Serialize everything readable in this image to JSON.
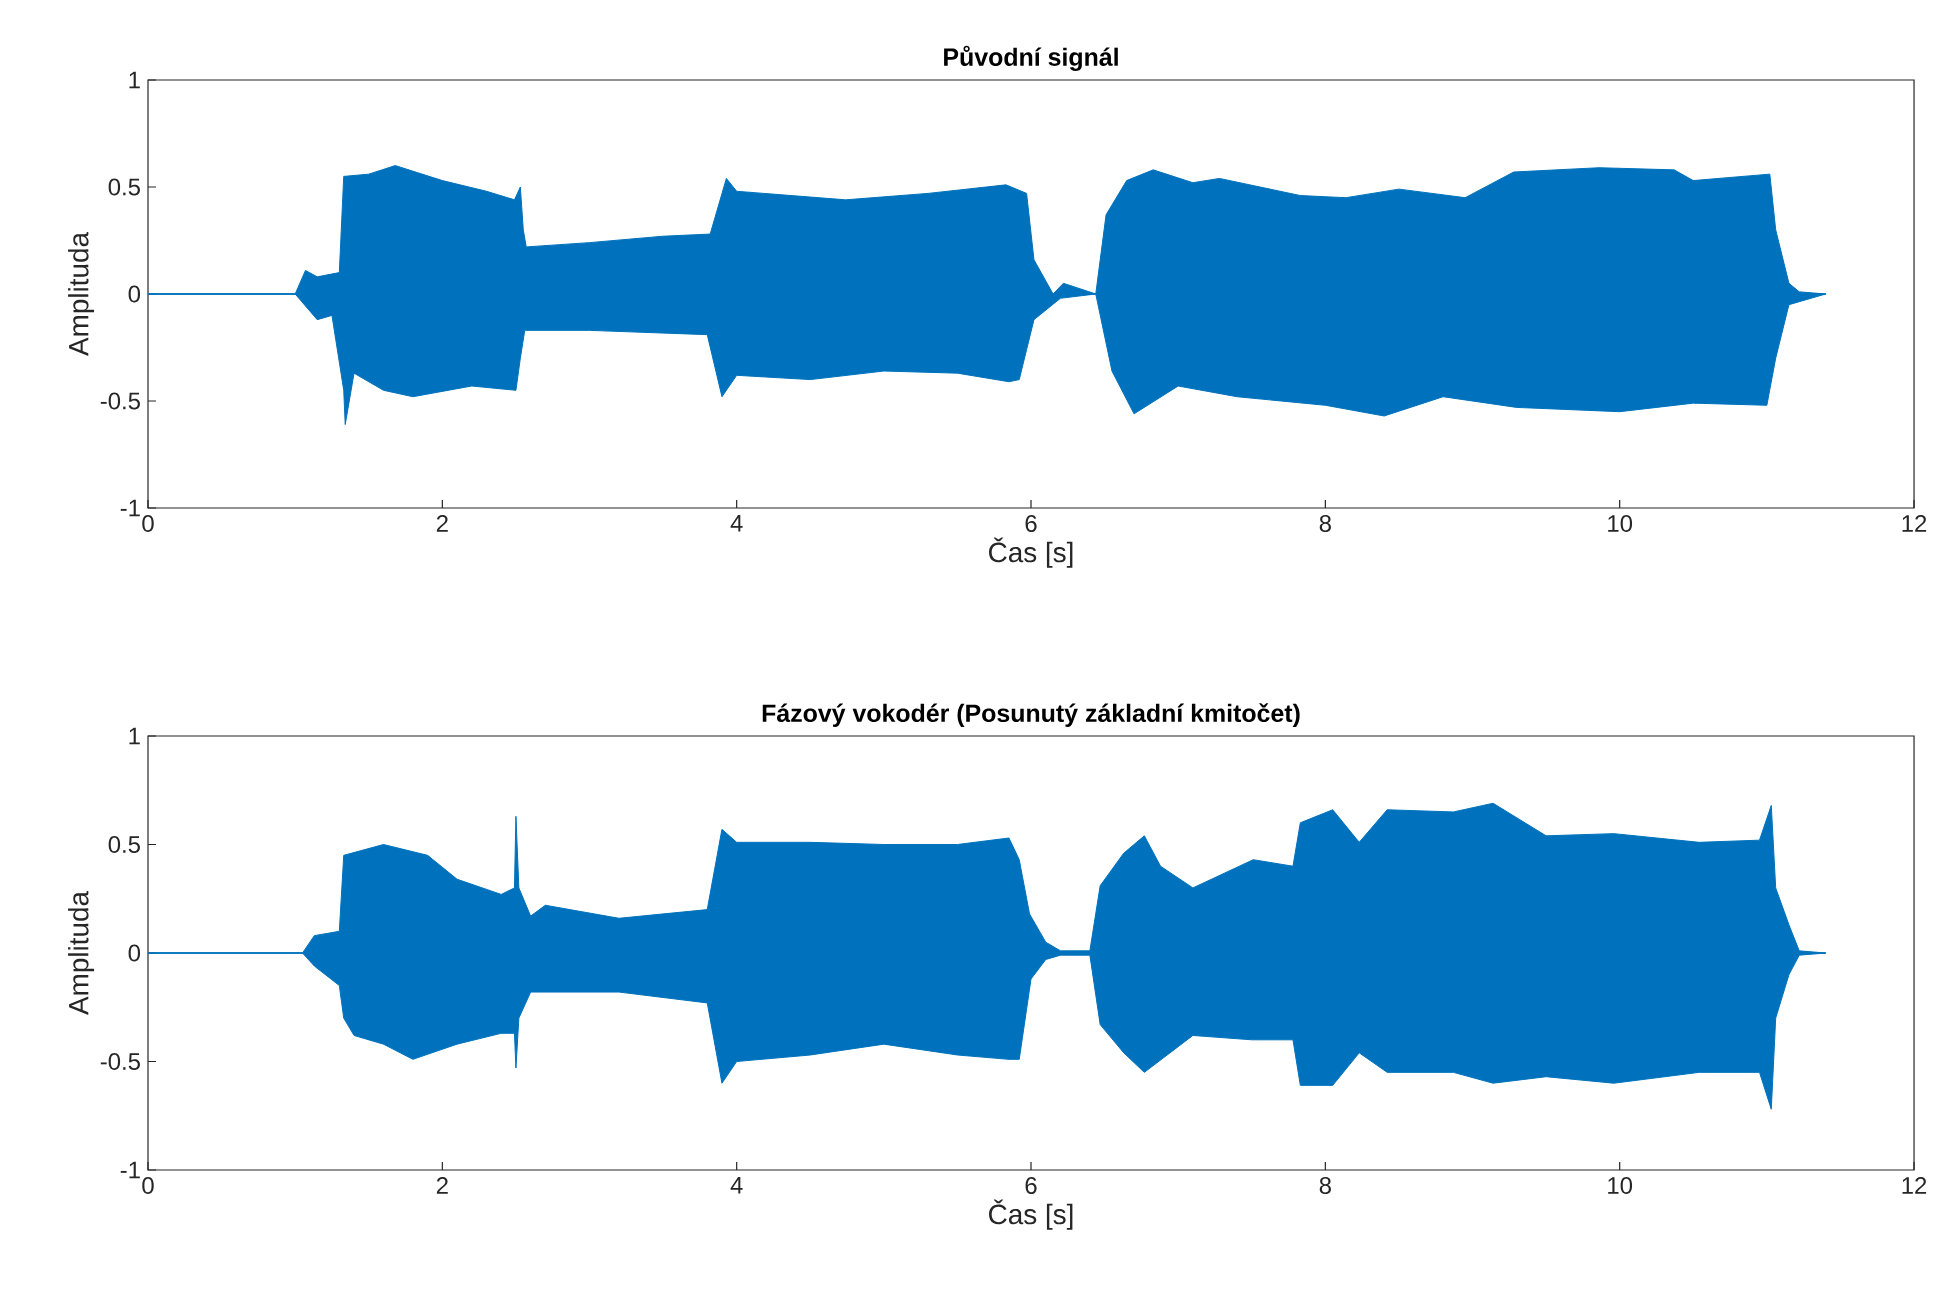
{
  "chart_data": [
    {
      "type": "area",
      "title": "Původní signál",
      "xlabel": "Čas [s]",
      "ylabel": "Amplituda",
      "xlim": [
        0,
        12
      ],
      "ylim": [
        -1,
        1
      ],
      "xticks": [
        0,
        2,
        4,
        6,
        8,
        10,
        12
      ],
      "yticks": [
        -1,
        -0.5,
        0,
        0.5,
        1
      ],
      "series": [
        {
          "color": "#0072bd",
          "x": [
            0,
            1.0,
            1.07,
            1.15,
            1.3,
            1.33,
            1.34,
            1.5,
            1.68,
            2.0,
            2.3,
            2.49,
            2.53,
            2.55,
            2.57,
            3.0,
            3.5,
            3.82,
            3.93,
            4.0,
            4.74,
            5.3,
            5.83,
            5.97,
            6.02,
            6.15,
            6.22,
            6.44,
            6.51,
            6.65,
            6.83,
            7.1,
            7.28,
            7.83,
            8.14,
            8.5,
            8.95,
            9.28,
            9.86,
            10.37,
            10.5,
            11.02,
            11.06,
            11.15,
            11.22,
            11.4
          ],
          "values": [
            0,
            0,
            0.11,
            0.08,
            0.1,
            0.55,
            0.55,
            0.56,
            0.6,
            0.53,
            0.48,
            0.44,
            0.5,
            0.3,
            0.22,
            0.24,
            0.27,
            0.28,
            0.54,
            0.48,
            0.44,
            0.47,
            0.51,
            0.47,
            0.16,
            0.0,
            0.05,
            0.0,
            0.37,
            0.53,
            0.58,
            0.52,
            0.54,
            0.46,
            0.45,
            0.49,
            0.45,
            0.57,
            0.59,
            0.58,
            0.53,
            0.56,
            0.3,
            0.05,
            0.01,
            0
          ]
        },
        {
          "color": "#0072bd",
          "x": [
            0,
            1.0,
            1.15,
            1.25,
            1.33,
            1.34,
            1.4,
            1.6,
            1.8,
            2.2,
            2.5,
            2.53,
            2.56,
            3.0,
            3.8,
            3.9,
            4.0,
            4.5,
            5.0,
            5.5,
            5.85,
            5.92,
            6.02,
            6.2,
            6.44,
            6.55,
            6.7,
            7.0,
            7.4,
            8.0,
            8.4,
            8.8,
            9.3,
            10.0,
            10.5,
            11.0,
            11.06,
            11.15,
            11.4
          ],
          "values": [
            0,
            0,
            -0.12,
            -0.1,
            -0.45,
            -0.61,
            -0.37,
            -0.45,
            -0.48,
            -0.43,
            -0.45,
            -0.3,
            -0.17,
            -0.17,
            -0.19,
            -0.48,
            -0.38,
            -0.4,
            -0.36,
            -0.37,
            -0.41,
            -0.4,
            -0.12,
            -0.02,
            0,
            -0.36,
            -0.56,
            -0.43,
            -0.48,
            -0.52,
            -0.57,
            -0.48,
            -0.53,
            -0.55,
            -0.51,
            -0.52,
            -0.3,
            -0.05,
            0
          ]
        }
      ]
    },
    {
      "type": "area",
      "title": "Fázový vokodér (Posunutý základní kmitočet)",
      "xlabel": "Čas [s]",
      "ylabel": "Amplituda",
      "xlim": [
        0,
        12
      ],
      "ylim": [
        -1,
        1
      ],
      "xticks": [
        0,
        2,
        4,
        6,
        8,
        10,
        12
      ],
      "yticks": [
        -1,
        -0.5,
        0,
        0.5,
        1
      ],
      "series": [
        {
          "color": "#0072bd",
          "x": [
            0,
            1.05,
            1.13,
            1.3,
            1.33,
            1.6,
            1.9,
            2.1,
            2.4,
            2.49,
            2.5,
            2.52,
            2.6,
            2.7,
            3.2,
            3.8,
            3.9,
            4.0,
            4.5,
            5.0,
            5.5,
            5.85,
            5.92,
            5.99,
            6.1,
            6.2,
            6.4,
            6.47,
            6.63,
            6.77,
            6.88,
            7.1,
            7.51,
            7.78,
            7.83,
            8.05,
            8.23,
            8.42,
            8.87,
            9.14,
            9.5,
            9.96,
            10.54,
            10.95,
            11.03,
            11.06,
            11.15,
            11.22,
            11.4
          ],
          "values": [
            0,
            0,
            0.08,
            0.1,
            0.45,
            0.5,
            0.45,
            0.34,
            0.27,
            0.3,
            0.63,
            0.3,
            0.17,
            0.22,
            0.16,
            0.2,
            0.57,
            0.51,
            0.51,
            0.5,
            0.5,
            0.53,
            0.43,
            0.18,
            0.05,
            0.01,
            0.01,
            0.31,
            0.46,
            0.54,
            0.4,
            0.3,
            0.43,
            0.4,
            0.6,
            0.66,
            0.51,
            0.66,
            0.65,
            0.69,
            0.54,
            0.55,
            0.51,
            0.52,
            0.68,
            0.3,
            0.13,
            0.01,
            0
          ]
        },
        {
          "color": "#0072bd",
          "x": [
            0,
            1.05,
            1.13,
            1.3,
            1.33,
            1.4,
            1.6,
            1.8,
            2.1,
            2.4,
            2.49,
            2.5,
            2.52,
            2.6,
            3.2,
            3.8,
            3.9,
            4.0,
            4.5,
            5.0,
            5.5,
            5.85,
            5.92,
            6.0,
            6.1,
            6.2,
            6.4,
            6.47,
            6.63,
            6.77,
            7.1,
            7.5,
            7.78,
            7.83,
            8.05,
            8.23,
            8.42,
            8.87,
            9.14,
            9.5,
            9.96,
            10.54,
            10.95,
            11.03,
            11.06,
            11.15,
            11.22,
            11.4
          ],
          "values": [
            0,
            0,
            -0.06,
            -0.15,
            -0.3,
            -0.38,
            -0.42,
            -0.49,
            -0.42,
            -0.37,
            -0.37,
            -0.53,
            -0.3,
            -0.18,
            -0.18,
            -0.23,
            -0.6,
            -0.5,
            -0.47,
            -0.42,
            -0.47,
            -0.49,
            -0.49,
            -0.12,
            -0.03,
            -0.01,
            -0.01,
            -0.33,
            -0.46,
            -0.55,
            -0.38,
            -0.4,
            -0.4,
            -0.61,
            -0.61,
            -0.46,
            -0.55,
            -0.55,
            -0.6,
            -0.57,
            -0.6,
            -0.55,
            -0.55,
            -0.72,
            -0.3,
            -0.1,
            -0.01,
            0
          ]
        }
      ]
    }
  ]
}
